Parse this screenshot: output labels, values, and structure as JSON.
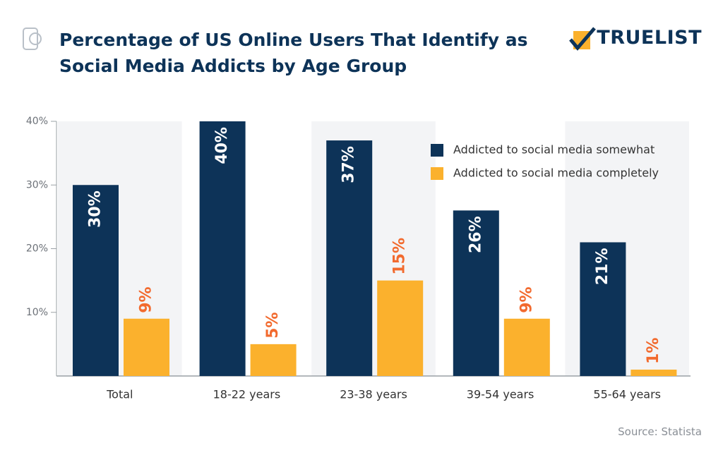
{
  "chart_data": {
    "type": "bar",
    "title": "Percentage of US Online Users That Identify as Social Media Addicts by Age Group",
    "brand": "TRUELIST",
    "source": "Source: Statista",
    "categories": [
      "Total",
      "18-22 years",
      "23-38 years",
      "39-54 years",
      "55-64 years"
    ],
    "series": [
      {
        "name": "Addicted to social media somewhat",
        "color": "#0d3358",
        "values": [
          30,
          40,
          37,
          26,
          21
        ],
        "value_labels": [
          "30%",
          "40%",
          "37%",
          "26%",
          "21%"
        ]
      },
      {
        "name": "Addicted to social media completely",
        "color": "#fbb12d",
        "values": [
          9,
          5,
          15,
          9,
          1
        ],
        "value_labels": [
          "9%",
          "5%",
          "15%",
          "9%",
          "1%"
        ]
      }
    ],
    "ylim": [
      0,
      40
    ],
    "yticks": [
      {
        "value": 10,
        "label": "10%"
      },
      {
        "value": 20,
        "label": "20%"
      },
      {
        "value": 30,
        "label": "30%"
      },
      {
        "value": 40,
        "label": "40%"
      }
    ],
    "legend": "upper right"
  }
}
